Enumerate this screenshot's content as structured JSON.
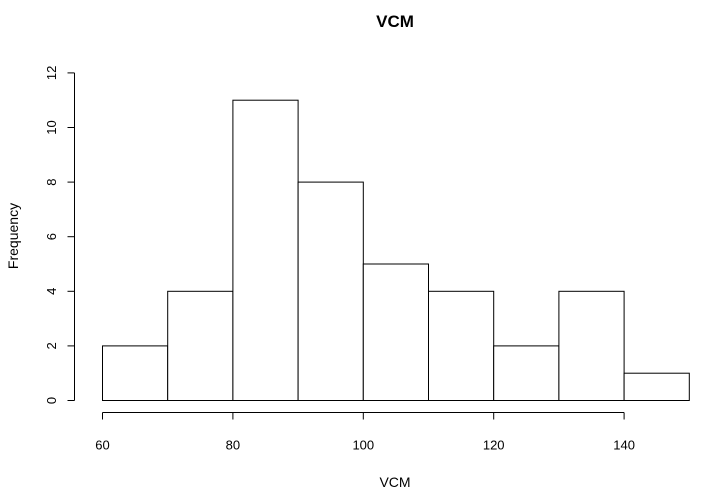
{
  "chart_data": {
    "type": "bar",
    "title": "VCM",
    "xlabel": "VCM",
    "ylabel": "Frequency",
    "bins": [
      {
        "start": 60,
        "end": 70,
        "count": 2
      },
      {
        "start": 70,
        "end": 80,
        "count": 4
      },
      {
        "start": 80,
        "end": 90,
        "count": 11
      },
      {
        "start": 90,
        "end": 100,
        "count": 8
      },
      {
        "start": 100,
        "end": 110,
        "count": 5
      },
      {
        "start": 110,
        "end": 120,
        "count": 4
      },
      {
        "start": 120,
        "end": 130,
        "count": 2
      },
      {
        "start": 130,
        "end": 140,
        "count": 4
      },
      {
        "start": 140,
        "end": 150,
        "count": 1
      }
    ],
    "xticks": [
      60,
      80,
      100,
      120,
      140
    ],
    "yticks": [
      0,
      2,
      4,
      6,
      8,
      10,
      12
    ],
    "xlim": [
      60,
      150
    ],
    "ylim": [
      0,
      12
    ],
    "grid": false,
    "legend": "none"
  }
}
